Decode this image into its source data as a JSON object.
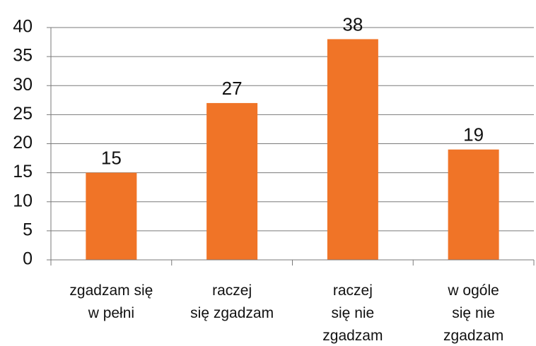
{
  "chart_data": {
    "type": "bar",
    "categories": [
      "zgadzam się\nw pełni",
      "raczej\nsię zgadzam",
      "raczej\nsię nie\nzgadzam",
      "w ogóle\nsię nie\nzgadzam"
    ],
    "values": [
      15,
      27,
      38,
      19
    ],
    "color": "#f07427",
    "ylim": [
      0,
      40
    ],
    "yticks": [
      0,
      5,
      10,
      15,
      20,
      25,
      30,
      35,
      40
    ],
    "grid": true
  }
}
